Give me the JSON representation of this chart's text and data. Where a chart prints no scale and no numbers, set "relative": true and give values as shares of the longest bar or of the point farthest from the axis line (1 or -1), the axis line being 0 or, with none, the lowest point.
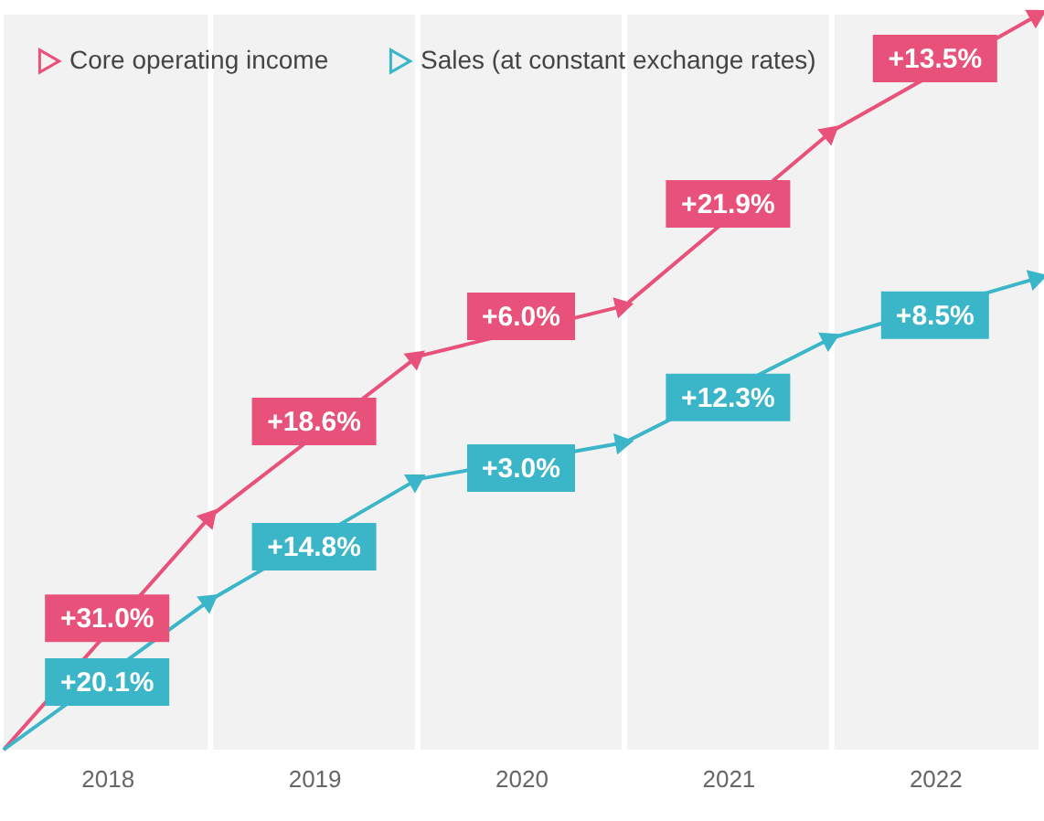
{
  "chart_data": {
    "type": "line",
    "relative": true,
    "x": [
      2017.5,
      2018.5,
      2019.5,
      2020.5,
      2021.5,
      2022.5
    ],
    "xlim": [
      2017.5,
      2022.5
    ],
    "xticks": [
      2018,
      2019,
      2020,
      2021,
      2022
    ],
    "series": [
      {
        "name": "Core operating income",
        "color": "#e8517a",
        "values": [
          0,
          0.318,
          0.535,
          0.604,
          0.841,
          1
        ]
      },
      {
        "name": "Sales (at constant exchange rates)",
        "color": "#3bb5c8",
        "values": [
          0,
          0.204,
          0.368,
          0.418,
          0.56,
          0.642
        ]
      }
    ],
    "annotations": [
      {
        "text": "+31.0%",
        "x": 2018,
        "y": 0.159
      },
      {
        "text": "+18.6%",
        "x": 2019,
        "y": 0.4265
      },
      {
        "text": "+6.0%",
        "x": 2020,
        "y": 0.5695
      },
      {
        "text": "+21.9%",
        "x": 2021,
        "y": 0.7225
      },
      {
        "text": "+13.5%",
        "x": 2022,
        "y": 0.9205
      },
      {
        "text": "+20.1%",
        "x": 2018,
        "y": 0.102
      },
      {
        "text": "+14.8%",
        "x": 2019,
        "y": 0.286
      },
      {
        "text": "+3.0%",
        "x": 2020,
        "y": 0.393
      },
      {
        "text": "+12.3%",
        "x": 2021,
        "y": 0.489
      },
      {
        "text": "+8.5%",
        "x": 2022,
        "y": 0.601
      }
    ],
    "ref_lines": [
      {
        "axis": "x",
        "value": 2018.5,
        "color": "#ffffff"
      },
      {
        "axis": "x",
        "value": 2019.5,
        "color": "#ffffff"
      },
      {
        "axis": "x",
        "value": 2020.5,
        "color": "#ffffff"
      },
      {
        "axis": "x",
        "value": 2021.5,
        "color": "#ffffff"
      }
    ],
    "marker": "triangle",
    "legend": "top left",
    "grid": false
  }
}
